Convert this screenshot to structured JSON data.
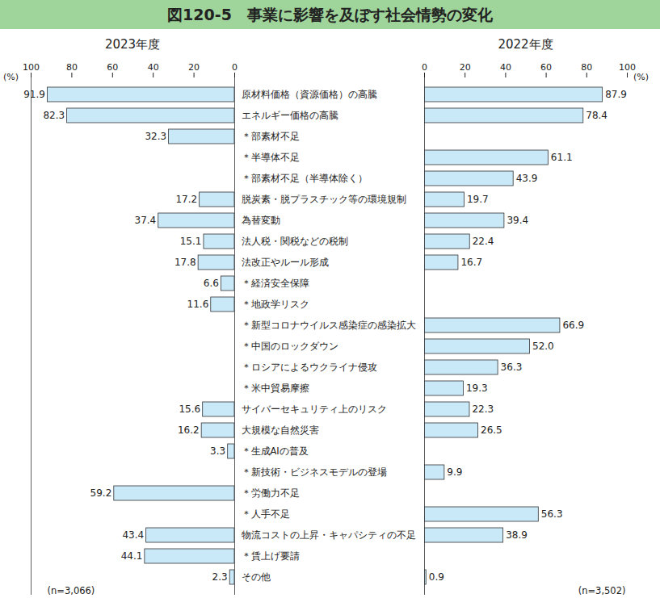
{
  "title": "図120-5　事業に影響を及ぼす社会情勢の変化",
  "chart_data": [
    {
      "type": "bar",
      "orientation": "horizontal",
      "title": "2023年度",
      "xlabel": "(%)",
      "note": "(n=3,066)",
      "categories": [
        "原材料価格（資源価格）の高騰",
        "エネルギー価格の高騰",
        "＊部素材不足",
        "＊半導体不足",
        "＊部素材不足（半導体除く）",
        "脱炭素・脱プラスチック等の環境規制",
        "為替変動",
        "法人税・関税などの税制",
        "法改正やルール形成",
        "＊経済安全保障",
        "＊地政学リスク",
        "＊新型コロナウイルス感染症の感染拡大",
        "＊中国のロックダウン",
        "＊ロシアによるウクライナ侵攻",
        "＊米中貿易摩擦",
        "サイバーセキュリティ上のリスク",
        "大規模な自然災害",
        "＊生成AIの普及",
        "＊新技術・ビジネスモデルの登場",
        "＊労働力不足",
        "＊人手不足",
        "物流コストの上昇・キャパシティの不足",
        "＊賃上げ要請",
        "その他"
      ],
      "values": [
        91.9,
        82.3,
        32.3,
        null,
        null,
        17.2,
        37.4,
        15.1,
        17.8,
        6.6,
        11.6,
        null,
        null,
        null,
        null,
        15.6,
        16.2,
        3.3,
        null,
        59.2,
        null,
        43.4,
        44.1,
        2.3
      ],
      "value_labels": [
        "91.9",
        "82.3",
        "32.3",
        null,
        null,
        "17.2",
        "37.4",
        "15.1",
        "17.8",
        "6.6",
        "11.6",
        null,
        null,
        null,
        null,
        "15.6",
        "16.2",
        "3.3",
        null,
        "59.2",
        null,
        "43.4",
        "44.1",
        "2.3"
      ],
      "color": "#c9e8f8",
      "xlim": [
        100,
        0
      ],
      "xticks": [
        100,
        80,
        60,
        40,
        20,
        0
      ],
      "grid": false,
      "data_labels": true
    },
    {
      "type": "bar",
      "orientation": "horizontal",
      "title": "2022年度",
      "xlabel": "(%)",
      "note": "(n=3,502)",
      "categories": [
        "原材料価格（資源価格）の高騰",
        "エネルギー価格の高騰",
        "＊部素材不足",
        "＊半導体不足",
        "＊部素材不足（半導体除く）",
        "脱炭素・脱プラスチック等の環境規制",
        "為替変動",
        "法人税・関税などの税制",
        "法改正やルール形成",
        "＊経済安全保障",
        "＊地政学リスク",
        "＊新型コロナウイルス感染症の感染拡大",
        "＊中国のロックダウン",
        "＊ロシアによるウクライナ侵攻",
        "＊米中貿易摩擦",
        "サイバーセキュリティ上のリスク",
        "大規模な自然災害",
        "＊生成AIの普及",
        "＊新技術・ビジネスモデルの登場",
        "＊労働力不足",
        "＊人手不足",
        "物流コストの上昇・キャパシティの不足",
        "＊賃上げ要請",
        "その他"
      ],
      "values": [
        87.9,
        78.4,
        null,
        61.1,
        43.9,
        19.7,
        39.4,
        22.4,
        16.7,
        null,
        null,
        66.9,
        52.0,
        36.3,
        19.3,
        22.3,
        26.5,
        null,
        9.9,
        null,
        56.3,
        38.9,
        null,
        0.9
      ],
      "value_labels": [
        "87.9",
        "78.4",
        null,
        "61.1",
        "43.9",
        "19.7",
        "39.4",
        "22.4",
        "16.7",
        null,
        null,
        "66.9",
        "52.0",
        "36.3",
        "19.3",
        "22.3",
        "26.5",
        null,
        "9.9",
        null,
        "56.3",
        "38.9",
        null,
        "0.9"
      ],
      "color": "#c9e8f8",
      "xlim": [
        0,
        100
      ],
      "xticks": [
        0,
        20,
        40,
        60,
        80,
        100
      ],
      "grid": false,
      "data_labels": true
    }
  ]
}
